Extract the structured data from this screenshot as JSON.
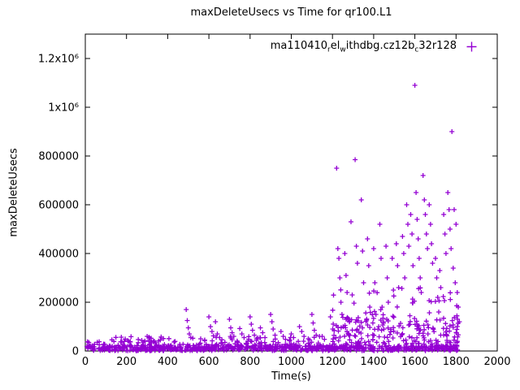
{
  "window": {
    "background": "#ffffff"
  },
  "legend": {
    "series_label_plain": "ma110410_rel_withdbg.cz12b_c32r128",
    "segments": [
      {
        "t": "ma110410"
      },
      {
        "t": "r",
        "sub": true
      },
      {
        "t": "el"
      },
      {
        "t": "w",
        "sub": true
      },
      {
        "t": "ithdbg.cz12b"
      },
      {
        "t": "c",
        "sub": true
      },
      {
        "t": "32r128"
      }
    ],
    "marker": "plus-icon"
  },
  "chart_data": {
    "type": "scatter",
    "title": "maxDeleteUsecs vs Time for qr100.L1",
    "xlabel": "Time(s)",
    "ylabel": "maxDeleteUsecs",
    "series_name": "ma110410_rel_withdbg.cz12b_c32r128",
    "marker": "plus",
    "marker_color": "#9400d3",
    "axis_color": "#000000",
    "grid": false,
    "legend_position": "top-right-inside",
    "xlim": [
      0,
      2000
    ],
    "ylim": [
      0,
      1300000
    ],
    "xticks": [
      0,
      200,
      400,
      600,
      800,
      1000,
      1200,
      1400,
      1600,
      1800,
      2000
    ],
    "yticks": [
      {
        "v": 0,
        "label": "0"
      },
      {
        "v": 200000,
        "label": "200000"
      },
      {
        "v": 400000,
        "label": "400000"
      },
      {
        "v": 600000,
        "label": "600000"
      },
      {
        "v": 800000,
        "label": "800000"
      },
      {
        "v": 1000000,
        "label": "1x10⁶"
      },
      {
        "v": 1200000,
        "label": "1.2x10⁶"
      }
    ],
    "outlier_points": [
      [
        300,
        60000
      ],
      [
        310,
        45000
      ],
      [
        320,
        52000
      ],
      [
        335,
        40000
      ],
      [
        490,
        170000
      ],
      [
        495,
        125000
      ],
      [
        500,
        95000
      ],
      [
        505,
        70000
      ],
      [
        512,
        55000
      ],
      [
        560,
        50000
      ],
      [
        580,
        45000
      ],
      [
        600,
        140000
      ],
      [
        608,
        100000
      ],
      [
        615,
        80000
      ],
      [
        622,
        62000
      ],
      [
        632,
        120000
      ],
      [
        641,
        70000
      ],
      [
        652,
        55000
      ],
      [
        663,
        46000
      ],
      [
        700,
        130000
      ],
      [
        706,
        95000
      ],
      [
        713,
        75000
      ],
      [
        721,
        60000
      ],
      [
        750,
        92000
      ],
      [
        760,
        70000
      ],
      [
        771,
        55000
      ],
      [
        800,
        140000
      ],
      [
        806,
        110000
      ],
      [
        812,
        85000
      ],
      [
        821,
        65000
      ],
      [
        831,
        50000
      ],
      [
        850,
        95000
      ],
      [
        861,
        75000
      ],
      [
        872,
        55000
      ],
      [
        900,
        150000
      ],
      [
        906,
        120000
      ],
      [
        912,
        90000
      ],
      [
        921,
        65000
      ],
      [
        950,
        80000
      ],
      [
        961,
        60000
      ],
      [
        972,
        48000
      ],
      [
        1000,
        70000
      ],
      [
        1011,
        55000
      ],
      [
        1040,
        100000
      ],
      [
        1051,
        80000
      ],
      [
        1062,
        60000
      ],
      [
        1100,
        150000
      ],
      [
        1106,
        115000
      ],
      [
        1112,
        85000
      ],
      [
        1121,
        65000
      ],
      [
        1150,
        60000
      ],
      [
        1161,
        48000
      ],
      [
        1190,
        140000
      ],
      [
        1201,
        90000
      ],
      [
        1220,
        750000
      ],
      [
        1226,
        420000
      ],
      [
        1231,
        380000
      ],
      [
        1236,
        300000
      ],
      [
        1241,
        200000
      ],
      [
        1246,
        150000
      ],
      [
        1260,
        400000
      ],
      [
        1266,
        310000
      ],
      [
        1271,
        240000
      ],
      [
        1290,
        530000
      ],
      [
        1296,
        230000
      ],
      [
        1310,
        785000
      ],
      [
        1316,
        430000
      ],
      [
        1321,
        360000
      ],
      [
        1340,
        620000
      ],
      [
        1346,
        410000
      ],
      [
        1351,
        280000
      ],
      [
        1370,
        460000
      ],
      [
        1376,
        350000
      ],
      [
        1381,
        180000
      ],
      [
        1400,
        420000
      ],
      [
        1406,
        280000
      ],
      [
        1411,
        150000
      ],
      [
        1430,
        520000
      ],
      [
        1436,
        380000
      ],
      [
        1441,
        180000
      ],
      [
        1447,
        120000
      ],
      [
        1460,
        430000
      ],
      [
        1466,
        300000
      ],
      [
        1471,
        200000
      ],
      [
        1490,
        380000
      ],
      [
        1496,
        250000
      ],
      [
        1510,
        440000
      ],
      [
        1516,
        350000
      ],
      [
        1521,
        260000
      ],
      [
        1540,
        470000
      ],
      [
        1546,
        400000
      ],
      [
        1551,
        300000
      ],
      [
        1560,
        600000
      ],
      [
        1566,
        520000
      ],
      [
        1571,
        430000
      ],
      [
        1580,
        560000
      ],
      [
        1586,
        480000
      ],
      [
        1591,
        350000
      ],
      [
        1600,
        1090000
      ],
      [
        1606,
        650000
      ],
      [
        1611,
        540000
      ],
      [
        1616,
        460000
      ],
      [
        1621,
        380000
      ],
      [
        1626,
        300000
      ],
      [
        1631,
        240000
      ],
      [
        1640,
        720000
      ],
      [
        1646,
        620000
      ],
      [
        1651,
        560000
      ],
      [
        1656,
        480000
      ],
      [
        1661,
        420000
      ],
      [
        1670,
        600000
      ],
      [
        1676,
        520000
      ],
      [
        1681,
        440000
      ],
      [
        1686,
        360000
      ],
      [
        1700,
        380000
      ],
      [
        1706,
        300000
      ],
      [
        1711,
        220000
      ],
      [
        1716,
        160000
      ],
      [
        1721,
        330000
      ],
      [
        1726,
        260000
      ],
      [
        1740,
        560000
      ],
      [
        1746,
        480000
      ],
      [
        1751,
        400000
      ],
      [
        1760,
        650000
      ],
      [
        1766,
        580000
      ],
      [
        1771,
        500000
      ],
      [
        1776,
        420000
      ],
      [
        1780,
        900000
      ],
      [
        1786,
        340000
      ],
      [
        1791,
        580000
      ],
      [
        1796,
        280000
      ],
      [
        1800,
        520000
      ],
      [
        1806,
        240000
      ],
      [
        1811,
        180000
      ],
      [
        1816,
        120000
      ]
    ],
    "noise_bands": [
      {
        "x0": 5,
        "x1": 1815,
        "y0": 1000,
        "y1": 22000,
        "count": 650
      },
      {
        "x0": 5,
        "x1": 1815,
        "y0": 22000,
        "y1": 40000,
        "count": 120
      },
      {
        "x0": 100,
        "x1": 1200,
        "y0": 40000,
        "y1": 60000,
        "count": 40
      },
      {
        "x0": 1200,
        "x1": 1815,
        "y0": 40000,
        "y1": 140000,
        "count": 150
      },
      {
        "x0": 1200,
        "x1": 1815,
        "y0": 140000,
        "y1": 260000,
        "count": 35
      }
    ],
    "noise_seed": 42
  }
}
